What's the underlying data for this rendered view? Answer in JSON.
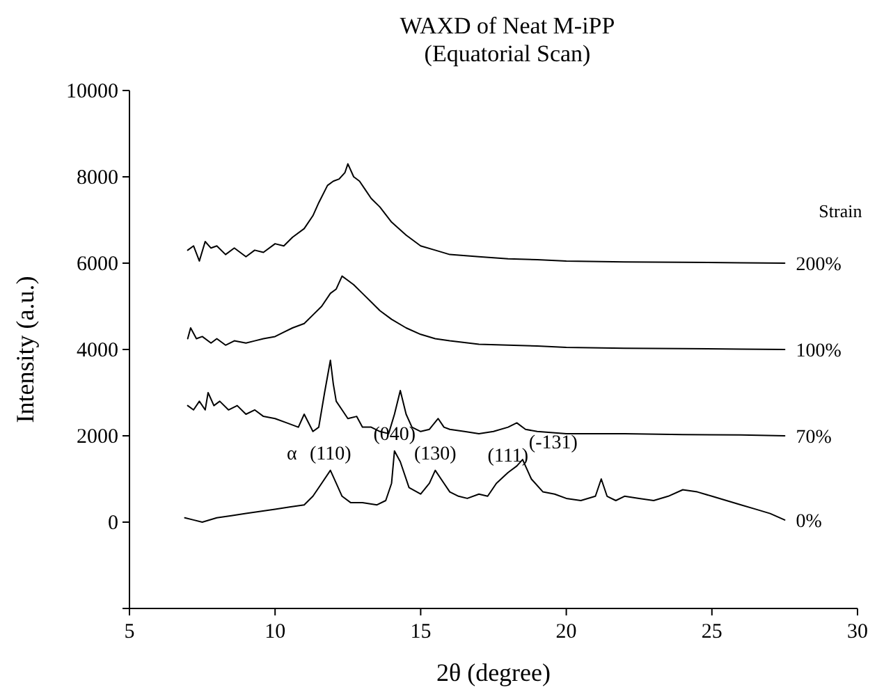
{
  "chart_data": {
    "type": "line",
    "title": "WAXD of Neat M-iPP",
    "subtitle": "(Equatorial Scan)",
    "xlabel": "2θ (degree)",
    "ylabel": "Intensity (a.u.)",
    "legend_title": "Strain",
    "xlim": [
      5,
      30
    ],
    "xticks": [
      5,
      10,
      15,
      20,
      25,
      30
    ],
    "ylim": [
      -2000,
      10000
    ],
    "yticks": [
      {
        "value": -2000,
        "label": null
      },
      0,
      2000,
      4000,
      6000,
      8000,
      10000
    ],
    "grid": false,
    "legend": "right",
    "marker": "none",
    "line_style": "solid",
    "annotations": [
      "α",
      {
        "text": "(110)",
        "x": 11.9,
        "y": 1200
      },
      {
        "text": "(040)",
        "x": 14.1,
        "y": 1650
      },
      {
        "text": "(130)",
        "x": 15.5,
        "y": 1200
      },
      {
        "text": "(111)",
        "x": 18.0,
        "y": 1150
      },
      {
        "text": "(-131)",
        "x": 18.5,
        "y": 1450
      }
    ],
    "series": [
      {
        "name": "200%",
        "color": "#000000",
        "x": [
          7.0,
          7.2,
          7.4,
          7.6,
          7.8,
          8.0,
          8.3,
          8.6,
          9.0,
          9.3,
          9.6,
          10.0,
          10.3,
          10.6,
          11.0,
          11.3,
          11.5,
          11.8,
          12.0,
          12.2,
          12.4,
          12.5,
          12.7,
          12.9,
          13.1,
          13.3,
          13.6,
          14.0,
          14.5,
          15.0,
          15.5,
          16.0,
          17.0,
          18.0,
          19.0,
          20.0,
          22.0,
          24.0,
          26.0,
          27.5
        ],
        "values": [
          6300,
          6400,
          6050,
          6500,
          6350,
          6400,
          6200,
          6350,
          6150,
          6300,
          6250,
          6450,
          6400,
          6600,
          6800,
          7100,
          7400,
          7800,
          7900,
          7950,
          8100,
          8300,
          8000,
          7900,
          7700,
          7500,
          7300,
          6950,
          6650,
          6400,
          6300,
          6200,
          6150,
          6100,
          6080,
          6050,
          6030,
          6020,
          6010,
          6000
        ]
      },
      {
        "name": "100%",
        "color": "#000000",
        "x": [
          7.0,
          7.1,
          7.3,
          7.5,
          7.8,
          8.0,
          8.3,
          8.6,
          9.0,
          9.3,
          9.6,
          10.0,
          10.3,
          10.6,
          11.0,
          11.3,
          11.6,
          11.9,
          12.1,
          12.3,
          12.5,
          12.7,
          13.0,
          13.3,
          13.6,
          14.0,
          14.5,
          15.0,
          15.5,
          16.0,
          17.0,
          18.0,
          19.0,
          20.0,
          22.0,
          24.0,
          26.0,
          27.5
        ],
        "values": [
          4250,
          4500,
          4250,
          4300,
          4150,
          4250,
          4100,
          4200,
          4150,
          4200,
          4250,
          4300,
          4400,
          4500,
          4600,
          4800,
          5000,
          5300,
          5400,
          5700,
          5600,
          5500,
          5300,
          5100,
          4900,
          4700,
          4500,
          4350,
          4250,
          4200,
          4120,
          4100,
          4080,
          4050,
          4030,
          4020,
          4010,
          4000
        ]
      },
      {
        "name": "70%",
        "color": "#000000",
        "x": [
          7.0,
          7.2,
          7.4,
          7.6,
          7.7,
          7.9,
          8.1,
          8.4,
          8.7,
          9.0,
          9.3,
          9.6,
          10.0,
          10.4,
          10.8,
          11.0,
          11.3,
          11.5,
          11.7,
          11.9,
          12.0,
          12.1,
          12.3,
          12.5,
          12.8,
          13.0,
          13.3,
          13.6,
          13.9,
          14.1,
          14.3,
          14.5,
          14.7,
          15.0,
          15.3,
          15.6,
          15.8,
          16.0,
          16.5,
          17.0,
          17.5,
          18.0,
          18.3,
          18.6,
          19.0,
          20.0,
          22.0,
          24.0,
          26.0,
          27.5
        ],
        "values": [
          2700,
          2600,
          2800,
          2600,
          3000,
          2700,
          2800,
          2600,
          2700,
          2500,
          2600,
          2450,
          2400,
          2300,
          2200,
          2500,
          2100,
          2200,
          3000,
          3750,
          3200,
          2800,
          2600,
          2400,
          2450,
          2200,
          2200,
          2100,
          2050,
          2500,
          3050,
          2500,
          2200,
          2100,
          2150,
          2400,
          2200,
          2150,
          2100,
          2050,
          2100,
          2200,
          2300,
          2150,
          2100,
          2050,
          2050,
          2030,
          2020,
          2000
        ]
      },
      {
        "name": "0%",
        "color": "#000000",
        "x": [
          6.9,
          7.2,
          7.5,
          8.0,
          8.5,
          9.0,
          9.5,
          10.0,
          10.5,
          11.0,
          11.3,
          11.6,
          11.9,
          12.1,
          12.3,
          12.6,
          13.0,
          13.5,
          13.8,
          14.0,
          14.1,
          14.3,
          14.6,
          15.0,
          15.3,
          15.5,
          15.8,
          16.0,
          16.3,
          16.6,
          17.0,
          17.3,
          17.6,
          18.0,
          18.3,
          18.5,
          18.8,
          19.2,
          19.6,
          20.0,
          20.5,
          21.0,
          21.2,
          21.4,
          21.7,
          22.0,
          22.5,
          23.0,
          23.5,
          24.0,
          24.5,
          25.0,
          25.5,
          26.0,
          26.5,
          27.0,
          27.5
        ],
        "values": [
          100,
          50,
          0,
          100,
          150,
          200,
          250,
          300,
          350,
          400,
          600,
          900,
          1200,
          900,
          600,
          450,
          450,
          400,
          500,
          900,
          1650,
          1400,
          800,
          650,
          900,
          1200,
          900,
          700,
          600,
          550,
          650,
          600,
          900,
          1150,
          1300,
          1450,
          1000,
          700,
          650,
          550,
          500,
          600,
          1000,
          600,
          500,
          600,
          550,
          500,
          600,
          750,
          700,
          600,
          500,
          400,
          300,
          200,
          50
        ]
      }
    ]
  }
}
